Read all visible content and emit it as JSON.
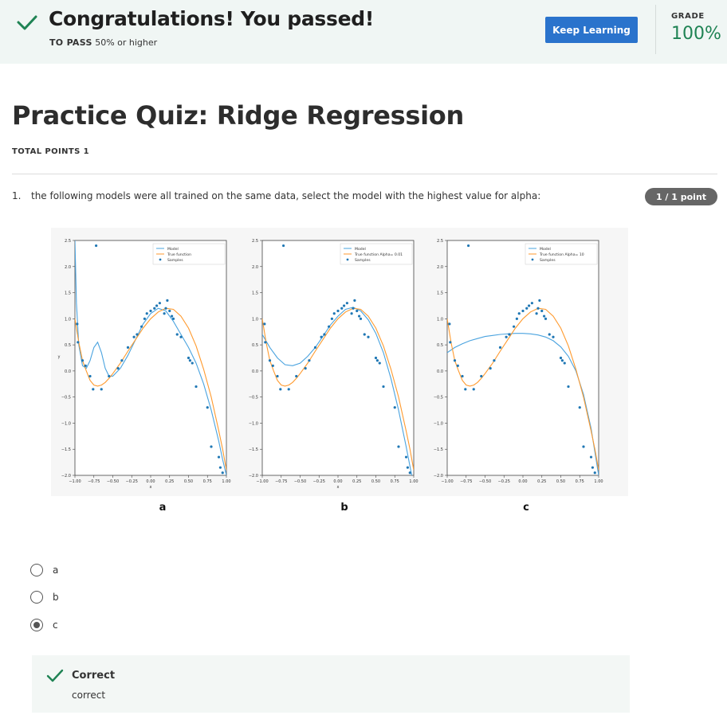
{
  "banner": {
    "title": "Congratulations! You passed!",
    "to_pass_label": "TO PASS",
    "to_pass_value": "50% or higher",
    "keep_learning": "Keep Learning",
    "grade_label": "GRADE",
    "grade_value": "100%"
  },
  "quiz": {
    "title": "Practice Quiz: Ridge Regression",
    "total_points": "TOTAL POINTS 1"
  },
  "question": {
    "number": "1.",
    "text": "the following models were all trained on the same data, select the model with the highest value for alpha:",
    "points": "1 / 1 point"
  },
  "chart_data": [
    {
      "type": "line",
      "panel_label": "a",
      "xlabel": "x",
      "ylabel": "y",
      "xlim": [
        -1.0,
        1.0
      ],
      "ylim": [
        -2.0,
        2.5
      ],
      "xticks": [
        "−1.00",
        "−0.75",
        "−0.50",
        "−0.25",
        "0.00",
        "0.25",
        "0.50",
        "0.75",
        "1.00"
      ],
      "yticks": [
        "2.5",
        "2.0",
        "1.5",
        "1.0",
        "0.5",
        "0.0",
        "−0.5",
        "−1.0",
        "−1.5",
        "−2.0"
      ],
      "legend": [
        "Model",
        "True function",
        "Samples"
      ],
      "series": [
        {
          "name": "Model",
          "x": [
            -1.0,
            -0.98,
            -0.95,
            -0.9,
            -0.85,
            -0.8,
            -0.75,
            -0.7,
            -0.65,
            -0.6,
            -0.55,
            -0.5,
            -0.4,
            -0.3,
            -0.2,
            -0.1,
            0.0,
            0.1,
            0.2,
            0.3,
            0.4,
            0.5,
            0.6,
            0.7,
            0.8,
            0.9,
            0.95,
            1.0
          ],
          "y": [
            2.5,
            1.3,
            0.5,
            0.1,
            0.05,
            0.2,
            0.45,
            0.55,
            0.35,
            0.05,
            -0.1,
            -0.1,
            0.05,
            0.3,
            0.6,
            0.9,
            1.1,
            1.2,
            1.15,
            0.95,
            0.7,
            0.45,
            0.15,
            -0.25,
            -0.75,
            -1.35,
            -1.7,
            -2.0
          ]
        },
        {
          "name": "True function",
          "x": [
            -1.0,
            -0.95,
            -0.9,
            -0.85,
            -0.8,
            -0.75,
            -0.7,
            -0.65,
            -0.6,
            -0.55,
            -0.5,
            -0.4,
            -0.3,
            -0.2,
            -0.1,
            0.0,
            0.1,
            0.2,
            0.3,
            0.4,
            0.5,
            0.6,
            0.7,
            0.8,
            0.9,
            0.95,
            1.0
          ],
          "y": [
            1.0,
            0.55,
            0.2,
            0.0,
            -0.18,
            -0.27,
            -0.29,
            -0.27,
            -0.22,
            -0.14,
            -0.05,
            0.15,
            0.38,
            0.6,
            0.82,
            1.0,
            1.13,
            1.2,
            1.18,
            1.05,
            0.82,
            0.48,
            0.03,
            -0.5,
            -1.15,
            -1.5,
            -1.9
          ]
        }
      ],
      "samples": {
        "x": [
          -0.97,
          -0.96,
          -0.9,
          -0.86,
          -0.8,
          -0.76,
          -0.65,
          -0.55,
          -0.43,
          -0.38,
          -0.3,
          -0.22,
          -0.18,
          -0.12,
          -0.08,
          -0.05,
          0.0,
          0.05,
          0.08,
          0.12,
          0.18,
          0.2,
          0.22,
          0.25,
          0.28,
          0.3,
          0.35,
          0.4,
          0.5,
          0.52,
          0.55,
          0.6,
          0.75,
          0.8,
          0.9,
          0.92,
          0.95
        ],
        "y": [
          0.9,
          0.55,
          0.2,
          0.1,
          -0.1,
          -0.35,
          -0.35,
          -0.1,
          0.05,
          0.2,
          0.45,
          0.65,
          0.7,
          0.85,
          1.0,
          1.1,
          1.15,
          1.2,
          1.25,
          1.3,
          1.1,
          1.2,
          1.35,
          1.15,
          1.05,
          1.0,
          0.7,
          0.65,
          0.25,
          0.2,
          0.15,
          -0.3,
          -0.7,
          -1.45,
          -1.65,
          -1.85,
          -1.95
        ]
      },
      "outlier": {
        "x": -0.72,
        "y": 2.4
      }
    },
    {
      "type": "line",
      "panel_label": "b",
      "xlabel": "x",
      "ylabel": "",
      "xlim": [
        -1.0,
        1.0
      ],
      "ylim": [
        -2.0,
        2.5
      ],
      "xticks": [
        "−1.00",
        "−0.75",
        "−0.50",
        "−0.25",
        "0.00",
        "0.25",
        "0.50",
        "0.75",
        "1.00"
      ],
      "yticks": [
        "2.5",
        "2.0",
        "1.5",
        "1.0",
        "0.5",
        "0.0",
        "−0.5",
        "−1.0",
        "−1.5",
        "−2.0"
      ],
      "legend": [
        "Model",
        "True function Alpha= 0.01",
        "Samples"
      ],
      "series": [
        {
          "name": "Model",
          "x": [
            -1.0,
            -0.9,
            -0.8,
            -0.7,
            -0.6,
            -0.5,
            -0.4,
            -0.3,
            -0.2,
            -0.1,
            0.0,
            0.1,
            0.2,
            0.3,
            0.4,
            0.5,
            0.6,
            0.7,
            0.8,
            0.9,
            1.0
          ],
          "y": [
            0.7,
            0.45,
            0.25,
            0.12,
            0.1,
            0.15,
            0.28,
            0.45,
            0.66,
            0.88,
            1.05,
            1.18,
            1.22,
            1.15,
            0.98,
            0.72,
            0.35,
            -0.15,
            -0.75,
            -1.45,
            -2.2
          ]
        },
        {
          "name": "True function Alpha= 0.01",
          "x": [
            -1.0,
            -0.95,
            -0.9,
            -0.85,
            -0.8,
            -0.75,
            -0.7,
            -0.65,
            -0.6,
            -0.55,
            -0.5,
            -0.4,
            -0.3,
            -0.2,
            -0.1,
            0.0,
            0.1,
            0.2,
            0.3,
            0.4,
            0.5,
            0.6,
            0.7,
            0.8,
            0.9,
            0.95,
            1.0
          ],
          "y": [
            1.0,
            0.55,
            0.2,
            0.0,
            -0.18,
            -0.27,
            -0.29,
            -0.27,
            -0.22,
            -0.14,
            -0.05,
            0.15,
            0.38,
            0.6,
            0.82,
            1.0,
            1.13,
            1.2,
            1.18,
            1.05,
            0.82,
            0.48,
            0.03,
            -0.5,
            -1.15,
            -1.5,
            -1.9
          ]
        }
      ],
      "samples": {
        "x": [
          -0.97,
          -0.96,
          -0.9,
          -0.86,
          -0.8,
          -0.76,
          -0.65,
          -0.55,
          -0.43,
          -0.38,
          -0.3,
          -0.22,
          -0.18,
          -0.12,
          -0.08,
          -0.05,
          0.0,
          0.05,
          0.08,
          0.12,
          0.18,
          0.2,
          0.22,
          0.25,
          0.28,
          0.3,
          0.35,
          0.4,
          0.5,
          0.52,
          0.55,
          0.6,
          0.75,
          0.8,
          0.9,
          0.92,
          0.95
        ],
        "y": [
          0.9,
          0.55,
          0.2,
          0.1,
          -0.1,
          -0.35,
          -0.35,
          -0.1,
          0.05,
          0.2,
          0.45,
          0.65,
          0.7,
          0.85,
          1.0,
          1.1,
          1.15,
          1.2,
          1.25,
          1.3,
          1.1,
          1.2,
          1.35,
          1.15,
          1.05,
          1.0,
          0.7,
          0.65,
          0.25,
          0.2,
          0.15,
          -0.3,
          -0.7,
          -1.45,
          -1.65,
          -1.85,
          -1.95
        ]
      },
      "outlier": {
        "x": -0.72,
        "y": 2.4
      }
    },
    {
      "type": "line",
      "panel_label": "c",
      "xlabel": "",
      "ylabel": "",
      "xlim": [
        -1.0,
        1.0
      ],
      "ylim": [
        -2.0,
        2.5
      ],
      "xticks": [
        "−1.00",
        "−0.75",
        "−0.50",
        "−0.25",
        "0.00",
        "0.25",
        "0.50",
        "0.75",
        "1.00"
      ],
      "yticks": [
        "2.5",
        "2.0",
        "1.5",
        "1.0",
        "0.5",
        "0.0",
        "−0.5",
        "−1.0",
        "−1.5",
        "−2.0"
      ],
      "legend": [
        "Model",
        "True function Alpha= 10",
        "Samples"
      ],
      "series": [
        {
          "name": "Model",
          "x": [
            -1.0,
            -0.9,
            -0.8,
            -0.7,
            -0.6,
            -0.5,
            -0.4,
            -0.3,
            -0.2,
            -0.1,
            0.0,
            0.1,
            0.2,
            0.3,
            0.4,
            0.5,
            0.6,
            0.7,
            0.8,
            0.9,
            1.0
          ],
          "y": [
            0.35,
            0.45,
            0.52,
            0.58,
            0.62,
            0.66,
            0.68,
            0.7,
            0.71,
            0.72,
            0.72,
            0.71,
            0.69,
            0.65,
            0.58,
            0.46,
            0.28,
            0.0,
            -0.45,
            -1.1,
            -2.0
          ]
        },
        {
          "name": "True function Alpha= 10",
          "x": [
            -1.0,
            -0.95,
            -0.9,
            -0.85,
            -0.8,
            -0.75,
            -0.7,
            -0.65,
            -0.6,
            -0.55,
            -0.5,
            -0.4,
            -0.3,
            -0.2,
            -0.1,
            0.0,
            0.1,
            0.2,
            0.3,
            0.4,
            0.5,
            0.6,
            0.7,
            0.8,
            0.9,
            0.95,
            1.0
          ],
          "y": [
            1.0,
            0.55,
            0.2,
            0.0,
            -0.18,
            -0.27,
            -0.29,
            -0.27,
            -0.22,
            -0.14,
            -0.05,
            0.15,
            0.38,
            0.6,
            0.82,
            1.0,
            1.13,
            1.2,
            1.18,
            1.05,
            0.82,
            0.48,
            0.03,
            -0.5,
            -1.15,
            -1.5,
            -1.9
          ]
        }
      ],
      "samples": {
        "x": [
          -0.97,
          -0.96,
          -0.9,
          -0.86,
          -0.8,
          -0.76,
          -0.65,
          -0.55,
          -0.43,
          -0.38,
          -0.3,
          -0.22,
          -0.18,
          -0.12,
          -0.08,
          -0.05,
          0.0,
          0.05,
          0.08,
          0.12,
          0.18,
          0.2,
          0.22,
          0.25,
          0.28,
          0.3,
          0.35,
          0.4,
          0.5,
          0.52,
          0.55,
          0.6,
          0.75,
          0.8,
          0.9,
          0.92,
          0.95
        ],
        "y": [
          0.9,
          0.55,
          0.2,
          0.1,
          -0.1,
          -0.35,
          -0.35,
          -0.1,
          0.05,
          0.2,
          0.45,
          0.65,
          0.7,
          0.85,
          1.0,
          1.1,
          1.15,
          1.2,
          1.25,
          1.3,
          1.1,
          1.2,
          1.35,
          1.15,
          1.05,
          1.0,
          0.7,
          0.65,
          0.25,
          0.2,
          0.15,
          -0.3,
          -0.7,
          -1.45,
          -1.65,
          -1.85,
          -1.95
        ]
      },
      "outlier": {
        "x": -0.72,
        "y": 2.4
      }
    }
  ],
  "chart_colors": {
    "model": "#4aa3df",
    "true_function": "#ff9a2e",
    "samples": "#1f77b4"
  },
  "options": [
    {
      "label": "a",
      "selected": false
    },
    {
      "label": "b",
      "selected": false
    },
    {
      "label": "c",
      "selected": true
    }
  ],
  "feedback": {
    "title": "Correct",
    "text": "correct"
  }
}
